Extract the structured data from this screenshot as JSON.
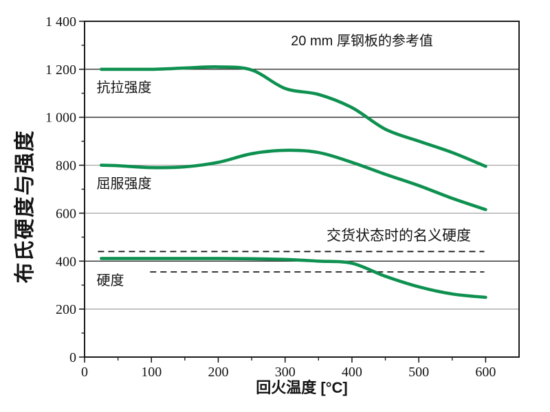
{
  "figure": {
    "description": "Tempering curve chart for steel plate: Brinell hardness and strength vs tempering temperature"
  },
  "colors": {
    "curve_green": "#0e9150",
    "grid_dark": "#2a2a2a",
    "grid_light": "#9e9e9e",
    "axis": "#1a1a1a",
    "text": "#141414",
    "background": "#ffffff"
  },
  "chart_data": {
    "type": "line",
    "title": "",
    "annotation": "20 mm 厚钢板的参考值",
    "annotation_pos": {
      "x": 415,
      "y": 1300
    },
    "xlabel": "回火温度 [°C]",
    "ylabel": "布氏硬度与强度",
    "xlim": [
      0,
      650
    ],
    "ylim": [
      0,
      1400
    ],
    "grid": "horizontal-only",
    "legend_position": "inline-labels",
    "x_major_step": 100,
    "x_minor_step": 50,
    "x_major_ticks": [
      0,
      100,
      200,
      300,
      400,
      500,
      600
    ],
    "x_tick_labels": [
      "0",
      "100",
      "200",
      "300",
      "400",
      "500",
      "600"
    ],
    "y_major_ticks": [
      0,
      200,
      400,
      600,
      800,
      1000,
      1200,
      1400
    ],
    "y_tick_labels": [
      "0",
      "200",
      "400",
      "600",
      "800",
      "1 000",
      "1 200",
      "1 400"
    ],
    "y_minor_step": 100,
    "gridlines_y": [
      {
        "value": 200,
        "shade": "light"
      },
      {
        "value": 400,
        "shade": "dark"
      },
      {
        "value": 600,
        "shade": "light"
      },
      {
        "value": 800,
        "shade": "light"
      },
      {
        "value": 1000,
        "shade": "dark"
      },
      {
        "value": 1200,
        "shade": "dark"
      }
    ],
    "x": [
      25,
      50,
      100,
      150,
      200,
      250,
      300,
      350,
      400,
      450,
      500,
      550,
      600
    ],
    "series": [
      {
        "key": "tensile_strength",
        "name": "抗拉强度",
        "values": [
          1200,
          1200,
          1200,
          1205,
          1210,
          1197,
          1120,
          1095,
          1040,
          950,
          900,
          853,
          795
        ]
      },
      {
        "key": "yield_strength",
        "name": "屈服强度",
        "values": [
          800,
          798,
          790,
          793,
          812,
          848,
          862,
          853,
          812,
          762,
          715,
          662,
          615
        ]
      },
      {
        "key": "hardness",
        "name": "硬度",
        "values": [
          411,
          411,
          411,
          411,
          411,
          410,
          407,
          400,
          391,
          337,
          293,
          263,
          249
        ]
      }
    ],
    "series_labels": [
      {
        "key": "tensile_strength",
        "text": "抗拉强度",
        "x": 18,
        "y": 1105
      },
      {
        "key": "yield_strength",
        "text": "屈服强度",
        "x": 18,
        "y": 705
      },
      {
        "key": "hardness",
        "text": "硬度",
        "x": 18,
        "y": 300
      }
    ],
    "reference_lines": [
      {
        "key": "nominal_hardness_upper",
        "value": 440,
        "x_start": 20,
        "x_end": 598,
        "style": "dashed",
        "label": "交货状态时的名义硬度",
        "label_pos": {
          "x": 470,
          "y": 487
        }
      },
      {
        "key": "nominal_hardness_lower",
        "value": 355,
        "x_start": 98,
        "x_end": 598,
        "style": "dashed",
        "label": "",
        "label_pos": null
      }
    ]
  }
}
